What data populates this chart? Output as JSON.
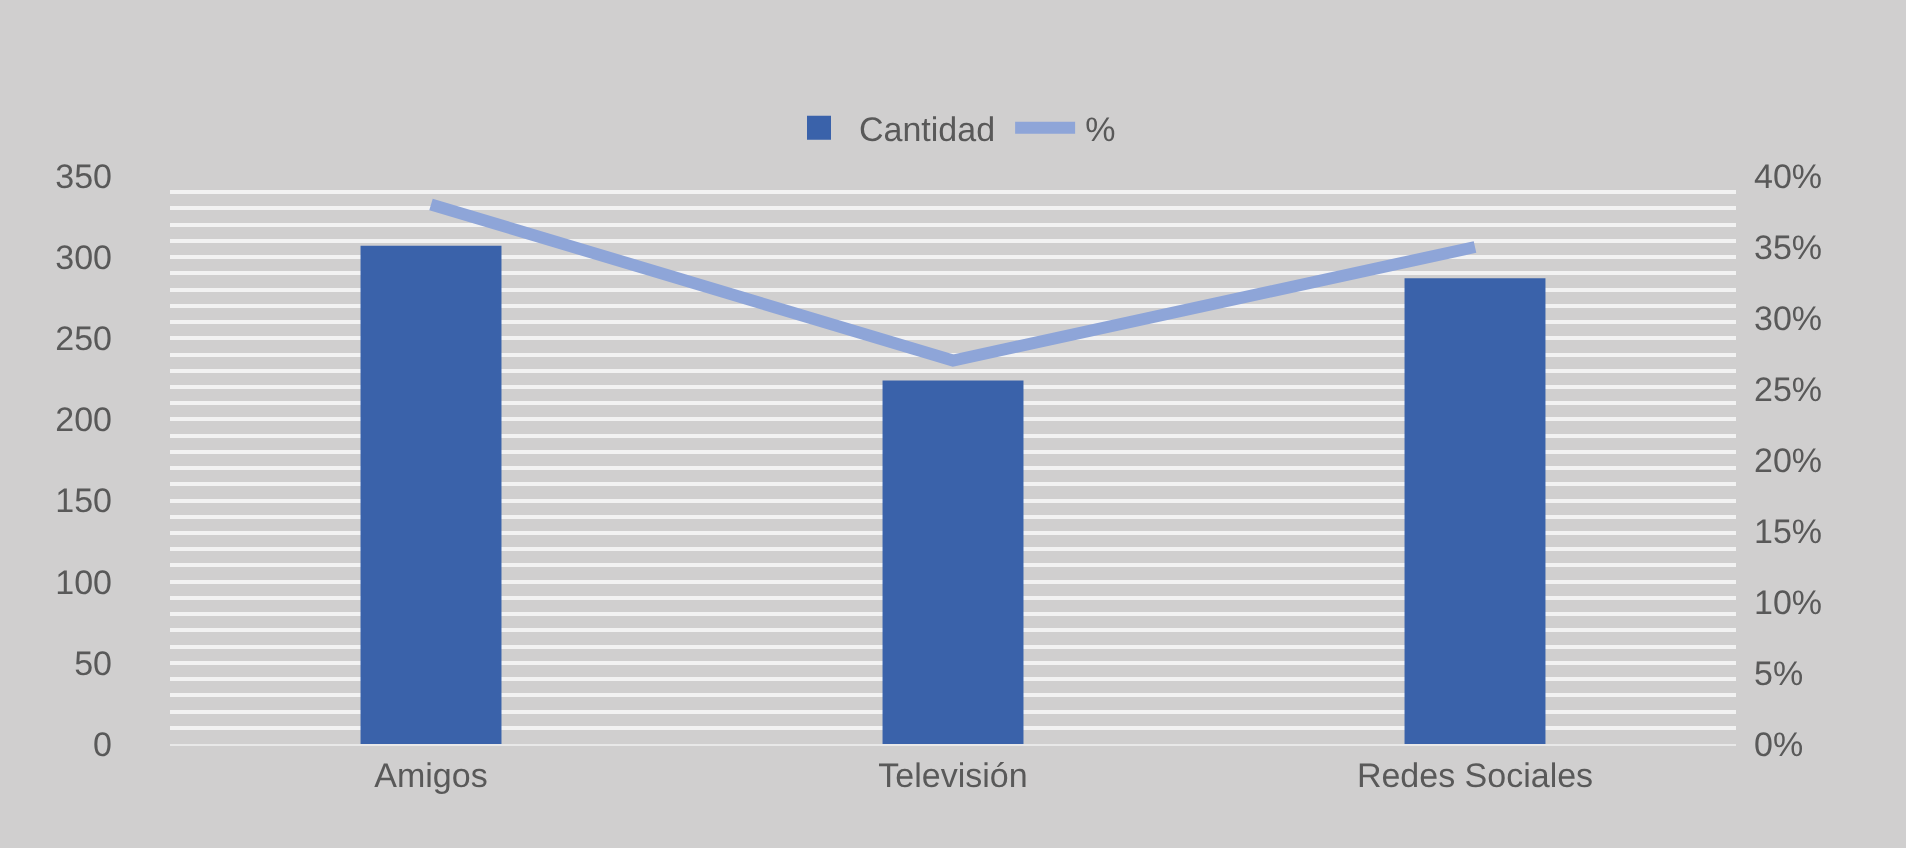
{
  "chart_data": {
    "type": "bar",
    "categories": [
      "Amigos",
      "Televisión",
      "Redes Sociales"
    ],
    "series": [
      {
        "name": "Cantidad",
        "color": "#3a62aa",
        "values": [
          307,
          224,
          287
        ]
      },
      {
        "name": "%",
        "type": "line",
        "axis": "y2",
        "color": "#8ea5d8",
        "values": [
          38,
          27,
          35
        ]
      }
    ],
    "ylim": [
      0,
      350
    ],
    "yticks": [
      0,
      {
        "value": 10,
        "label": null
      },
      {
        "value": 20,
        "label": null
      },
      {
        "value": 30,
        "label": null
      },
      {
        "value": 40,
        "label": null
      },
      50,
      {
        "value": 60,
        "label": null
      },
      {
        "value": 70,
        "label": null
      },
      {
        "value": 80,
        "label": null
      },
      {
        "value": 90,
        "label": null
      },
      100,
      {
        "value": 110,
        "label": null
      },
      {
        "value": 120,
        "label": null
      },
      {
        "value": 130,
        "label": null
      },
      {
        "value": 140,
        "label": null
      },
      150,
      {
        "value": 160,
        "label": null
      },
      {
        "value": 170,
        "label": null
      },
      {
        "value": 180,
        "label": null
      },
      {
        "value": 190,
        "label": null
      },
      200,
      {
        "value": 210,
        "label": null
      },
      {
        "value": 220,
        "label": null
      },
      {
        "value": 230,
        "label": null
      },
      {
        "value": 240,
        "label": null
      },
      250,
      {
        "value": 260,
        "label": null
      },
      {
        "value": 270,
        "label": null
      },
      {
        "value": 280,
        "label": null
      },
      {
        "value": 290,
        "label": null
      },
      300,
      {
        "value": 310,
        "label": null
      },
      {
        "value": 320,
        "label": null
      },
      {
        "value": 330,
        "label": null
      },
      {
        "value": 340,
        "label": null
      },
      350
    ],
    "y2lim": [
      0,
      40
    ],
    "y2ticks": [
      {
        "value": 0,
        "label": "0%"
      },
      {
        "value": 5,
        "label": "5%"
      },
      {
        "value": 10,
        "label": "10%"
      },
      {
        "value": 15,
        "label": "15%"
      },
      {
        "value": 20,
        "label": "20%"
      },
      {
        "value": 25,
        "label": "25%"
      },
      {
        "value": 30,
        "label": "30%"
      },
      {
        "value": 35,
        "label": "35%"
      },
      {
        "value": 40,
        "label": "40%"
      }
    ],
    "grid": "y",
    "legend": "top",
    "marker": "none",
    "line_style": "solid"
  }
}
